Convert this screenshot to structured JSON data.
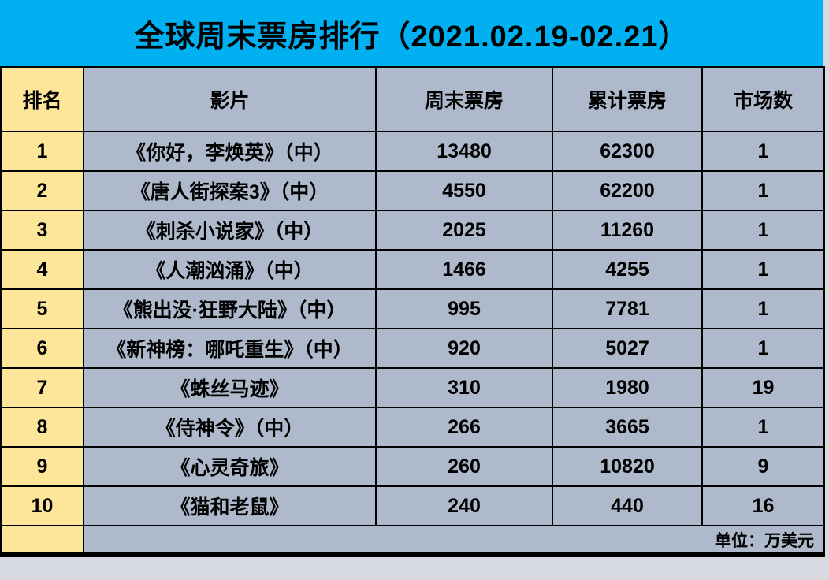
{
  "title": "全球周末票房排行（2021.02.19-02.21）",
  "unit_note": "单位：万美元",
  "colors": {
    "title_bg": "#00B0F0",
    "rank_column_bg": "#FDE699",
    "cell_bg": "#AEBACB",
    "border": "#000000",
    "text": "#000000",
    "outer_margin": "#D7DBE1"
  },
  "table": {
    "headers": [
      "排名",
      "影片",
      "周末票房",
      "累计票房",
      "市场数"
    ],
    "rows": [
      {
        "rank": "1",
        "film": "《你好，李焕英》（中）",
        "weekend": "13480",
        "cumulative": "62300",
        "markets": "1"
      },
      {
        "rank": "2",
        "film": "《唐人街探案3》（中）",
        "weekend": "4550",
        "cumulative": "62200",
        "markets": "1"
      },
      {
        "rank": "3",
        "film": "《刺杀小说家》（中）",
        "weekend": "2025",
        "cumulative": "11260",
        "markets": "1"
      },
      {
        "rank": "4",
        "film": "《人潮汹涌》（中）",
        "weekend": "1466",
        "cumulative": "4255",
        "markets": "1"
      },
      {
        "rank": "5",
        "film": "《熊出没·狂野大陆》（中）",
        "weekend": "995",
        "cumulative": "7781",
        "markets": "1"
      },
      {
        "rank": "6",
        "film": "《新神榜：哪吒重生》（中）",
        "weekend": "920",
        "cumulative": "5027",
        "markets": "1"
      },
      {
        "rank": "7",
        "film": "《蛛丝马迹》",
        "weekend": "310",
        "cumulative": "1980",
        "markets": "19"
      },
      {
        "rank": "8",
        "film": "《侍神令》（中）",
        "weekend": "266",
        "cumulative": "3665",
        "markets": "1"
      },
      {
        "rank": "9",
        "film": "《心灵奇旅》",
        "weekend": "260",
        "cumulative": "10820",
        "markets": "9"
      },
      {
        "rank": "10",
        "film": "《猫和老鼠》",
        "weekend": "240",
        "cumulative": "440",
        "markets": "16"
      }
    ]
  },
  "chart_data": {
    "type": "table",
    "title": "全球周末票房排行（2021.02.19-02.21）",
    "unit": "万美元",
    "columns": [
      "排名",
      "影片",
      "周末票房",
      "累计票房",
      "市场数"
    ],
    "rows": [
      [
        1,
        "《你好，李焕英》（中）",
        13480,
        62300,
        1
      ],
      [
        2,
        "《唐人街探案3》（中）",
        4550,
        62200,
        1
      ],
      [
        3,
        "《刺杀小说家》（中）",
        2025,
        11260,
        1
      ],
      [
        4,
        "《人潮汹涌》（中）",
        1466,
        4255,
        1
      ],
      [
        5,
        "《熊出没·狂野大陆》（中）",
        995,
        7781,
        1
      ],
      [
        6,
        "《新神榜：哪吒重生》（中）",
        920,
        5027,
        1
      ],
      [
        7,
        "《蛛丝马迹》",
        310,
        1980,
        19
      ],
      [
        8,
        "《侍神令》（中）",
        266,
        3665,
        1
      ],
      [
        9,
        "《心灵奇旅》",
        260,
        10820,
        9
      ],
      [
        10,
        "《猫和老鼠》",
        240,
        440,
        16
      ]
    ]
  }
}
